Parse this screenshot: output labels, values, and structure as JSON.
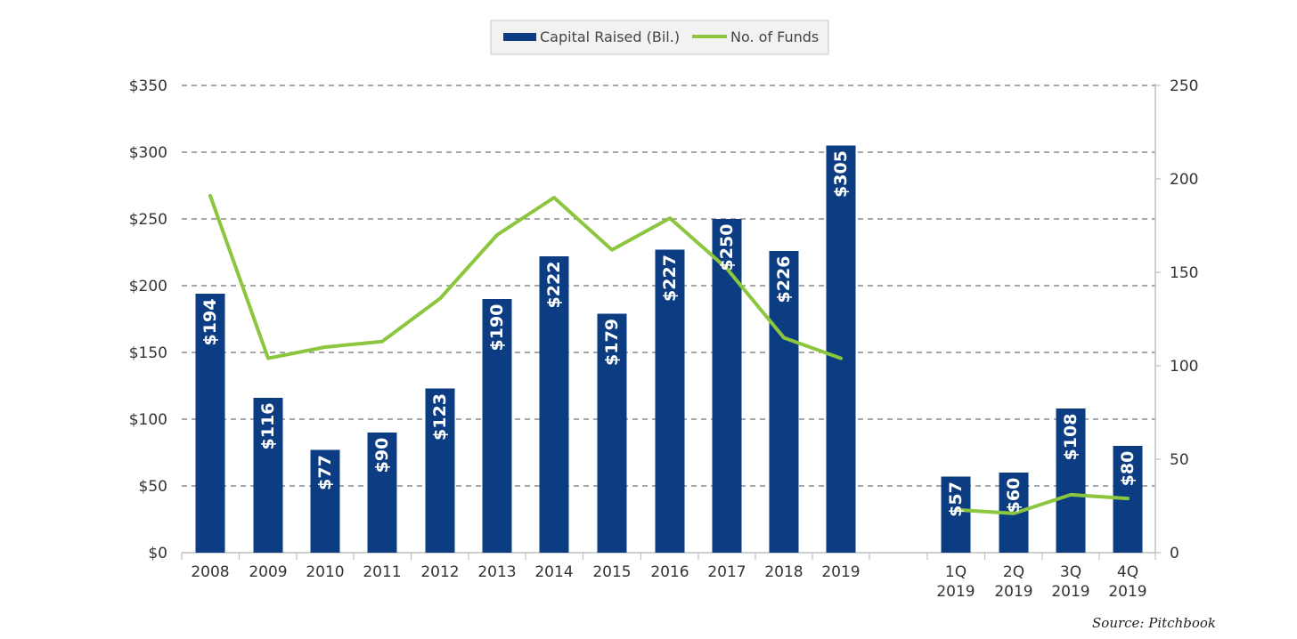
{
  "chart_data": {
    "type": "bar",
    "categories": [
      "2008",
      "2009",
      "2010",
      "2011",
      "2012",
      "2013",
      "2014",
      "2015",
      "2016",
      "2017",
      "2018",
      "2019",
      "1Q 2019",
      "2Q 2019",
      "3Q 2019",
      "4Q 2019"
    ],
    "series": [
      {
        "name": "Capital Raised (Bil.)",
        "type": "bar",
        "axis": "left",
        "color": "#0c3d82",
        "values": [
          194,
          116,
          77,
          90,
          123,
          190,
          222,
          179,
          227,
          250,
          226,
          305,
          57,
          60,
          108,
          80
        ],
        "labels": [
          "$194",
          "$116",
          "$77",
          "$90",
          "$123",
          "$190",
          "$222",
          "$179",
          "$227",
          "$250",
          "$226",
          "$305",
          "$57",
          "$60",
          "$108",
          "$80"
        ]
      },
      {
        "name": "No. of Funds",
        "type": "line",
        "axis": "right",
        "color": "#8cc63f",
        "values": [
          191,
          104,
          110,
          113,
          136,
          170,
          190,
          162,
          179,
          152,
          115,
          104,
          23,
          21,
          31,
          29
        ]
      }
    ],
    "y_left": {
      "ylim": [
        0,
        350
      ],
      "ticks": [
        0,
        50,
        100,
        150,
        200,
        250,
        300,
        350
      ],
      "tick_labels": [
        "$0",
        "$50",
        "$100",
        "$150",
        "$200",
        "$250",
        "$300",
        "$350"
      ]
    },
    "y_right": {
      "ylim": [
        0,
        250
      ],
      "ticks": [
        0,
        50,
        100,
        150,
        200,
        250
      ],
      "tick_labels": [
        "0",
        "50",
        "100",
        "150",
        "200",
        "250"
      ]
    },
    "groups": [
      {
        "categories": [
          "2008",
          "2009",
          "2010",
          "2011",
          "2012",
          "2013",
          "2014",
          "2015",
          "2016",
          "2017",
          "2018",
          "2019"
        ]
      },
      {
        "categories": [
          "1Q 2019",
          "2Q 2019",
          "3Q 2019",
          "4Q 2019"
        ]
      }
    ],
    "grid": true,
    "legend_position": "top-center",
    "source": "Source: Pitchbook"
  }
}
